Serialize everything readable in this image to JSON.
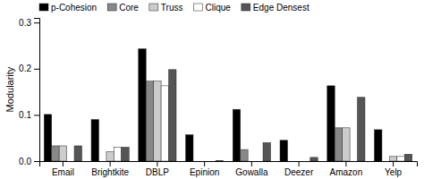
{
  "chart_data": {
    "type": "bar",
    "categories": [
      "Email",
      "Brightkite",
      "DBLP",
      "Epinion",
      "Gowalla",
      "Deezer",
      "Amazon",
      "Yelp"
    ],
    "series": [
      {
        "name": "p-Cohesion",
        "color": "#000000",
        "values": [
          0.101,
          0.09,
          0.243,
          0.057,
          0.112,
          0.045,
          0.163,
          0.068
        ]
      },
      {
        "name": "Core",
        "color": "#888888",
        "values": [
          0.033,
          0.0,
          0.173,
          0.0,
          0.025,
          0.0,
          0.072,
          0.0
        ]
      },
      {
        "name": "Truss",
        "color": "#cccccc",
        "values": [
          0.033,
          0.02,
          0.173,
          0.0,
          0.0,
          0.0,
          0.072,
          0.01
        ]
      },
      {
        "name": "Clique",
        "color": "#ffffff",
        "values": [
          0.0,
          0.03,
          0.163,
          0.0,
          0.0,
          0.0,
          0.0,
          0.01
        ]
      },
      {
        "name": "Edge Densest",
        "color": "#555555",
        "values": [
          0.033,
          0.03,
          0.198,
          0.001,
          0.04,
          0.008,
          0.138,
          0.015
        ]
      }
    ],
    "ylabel": "Modularity",
    "ylim": [
      0,
      0.31
    ],
    "yticks": [
      {
        "value": 0,
        "label": "0.0"
      },
      0.1,
      0.2,
      0.3
    ],
    "grid": false,
    "legend": "upper left"
  }
}
